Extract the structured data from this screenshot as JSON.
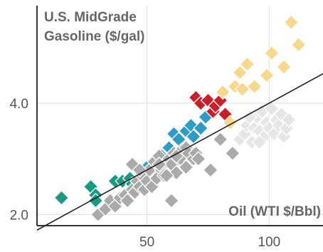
{
  "chart_data": {
    "type": "scatter",
    "ylabel_lines": [
      "U.S. MidGrade",
      "Gasoline ($/gal)"
    ],
    "xlabel": "Oil (WTI $/Bbl)",
    "x_ticks": [
      50,
      100
    ],
    "y_ticks": [
      2.0,
      4.0
    ],
    "y_tick_labels": [
      "2.0",
      "4.0"
    ],
    "xlim": [
      5,
      122
    ],
    "ylim": [
      1.8,
      5.75
    ],
    "grid": true,
    "trendline": {
      "intercept": 1.6,
      "slope": 0.024
    },
    "series": [
      {
        "color": "#1a9a82",
        "points": [
          [
            15,
            2.3
          ],
          [
            27,
            2.5
          ],
          [
            29,
            2.35
          ],
          [
            29,
            2.25
          ],
          [
            37,
            2.6
          ],
          [
            40,
            2.6
          ],
          [
            43,
            2.65
          ],
          [
            44,
            2.55
          ]
        ]
      },
      {
        "color": "#2e9cc4",
        "points": [
          [
            48,
            2.75
          ],
          [
            50,
            2.85
          ],
          [
            56,
            3.05
          ],
          [
            59,
            3.2
          ],
          [
            61,
            3.45
          ],
          [
            63,
            3.35
          ],
          [
            66,
            3.5
          ],
          [
            68,
            3.6
          ],
          [
            69,
            3.4
          ],
          [
            72,
            3.55
          ],
          [
            74,
            3.75
          ]
        ]
      },
      {
        "color": "#c8202a",
        "points": [
          [
            70,
            4.1
          ],
          [
            72,
            4.0
          ],
          [
            75,
            4.05
          ],
          [
            77,
            3.85
          ],
          [
            78,
            3.95
          ],
          [
            80,
            4.05
          ],
          [
            82,
            3.8
          ]
        ]
      },
      {
        "color": "#f8d88e",
        "points": [
          [
            81,
            4.2
          ],
          [
            84,
            3.65
          ],
          [
            86,
            4.3
          ],
          [
            88,
            4.55
          ],
          [
            89,
            4.25
          ],
          [
            91,
            4.7
          ],
          [
            94,
            4.3
          ],
          [
            99,
            4.5
          ],
          [
            101,
            4.9
          ],
          [
            106,
            4.65
          ],
          [
            109,
            5.45
          ],
          [
            112,
            5.05
          ]
        ]
      },
      {
        "color": "#aaaaaa",
        "points": [
          [
            30,
            2.0
          ],
          [
            33,
            2.1
          ],
          [
            35,
            2.25
          ],
          [
            37,
            2.15
          ],
          [
            39,
            2.3
          ],
          [
            41,
            2.35
          ],
          [
            42,
            2.25
          ],
          [
            44,
            2.45
          ],
          [
            45,
            2.4
          ],
          [
            46,
            2.6
          ],
          [
            47,
            2.5
          ],
          [
            48,
            2.7
          ],
          [
            49,
            2.45
          ],
          [
            50,
            2.6
          ],
          [
            51,
            2.8
          ],
          [
            52,
            2.5
          ],
          [
            53,
            2.95
          ],
          [
            54,
            2.65
          ],
          [
            55,
            3.05
          ],
          [
            56,
            2.8
          ],
          [
            57,
            2.7
          ],
          [
            58,
            2.95
          ],
          [
            59,
            3.0
          ],
          [
            60,
            2.9
          ],
          [
            61,
            3.1
          ],
          [
            62,
            2.75
          ],
          [
            63,
            3.0
          ],
          [
            64,
            3.15
          ],
          [
            65,
            2.95
          ],
          [
            66,
            3.2
          ],
          [
            67,
            3.1
          ],
          [
            68,
            2.95
          ],
          [
            69,
            3.0
          ],
          [
            70,
            3.1
          ],
          [
            71,
            3.0
          ],
          [
            60,
            2.25
          ],
          [
            76,
            2.8
          ],
          [
            85,
            3.1
          ],
          [
            80,
            3.35
          ],
          [
            44,
            2.9
          ],
          [
            47,
            2.8
          ],
          [
            55,
            2.9
          ],
          [
            58,
            2.7
          ],
          [
            62,
            3.05
          ],
          [
            66,
            2.85
          ]
        ]
      },
      {
        "color": "#e6e6e6",
        "points": [
          [
            88,
            3.35
          ],
          [
            90,
            3.45
          ],
          [
            91,
            3.6
          ],
          [
            93,
            3.3
          ],
          [
            94,
            3.55
          ],
          [
            95,
            3.75
          ],
          [
            96,
            3.5
          ],
          [
            97,
            3.85
          ],
          [
            98,
            3.4
          ],
          [
            99,
            3.65
          ],
          [
            100,
            3.55
          ],
          [
            101,
            3.9
          ],
          [
            102,
            3.45
          ],
          [
            103,
            3.7
          ],
          [
            104,
            3.6
          ],
          [
            105,
            3.8
          ],
          [
            106,
            3.4
          ],
          [
            107,
            3.55
          ],
          [
            108,
            3.7
          ],
          [
            96,
            3.3
          ],
          [
            92,
            3.75
          ]
        ]
      }
    ]
  }
}
